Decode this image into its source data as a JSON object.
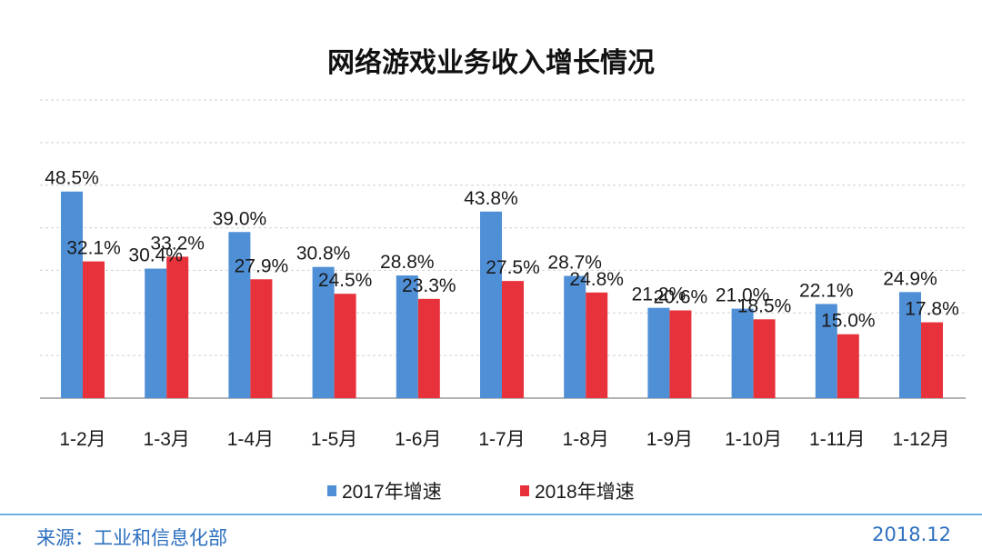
{
  "chart_data": {
    "type": "bar",
    "title": "网络游戏业务收入增长情况",
    "categories": [
      "1-2月",
      "1-3月",
      "1-4月",
      "1-5月",
      "1-6月",
      "1-7月",
      "1-8月",
      "1-9月",
      "1-10月",
      "1-11月",
      "1-12月"
    ],
    "series": [
      {
        "name": "2017年增速",
        "color": "#4f8fd6",
        "values": [
          48.5,
          30.4,
          39.0,
          30.8,
          28.8,
          43.8,
          28.7,
          21.2,
          21.0,
          22.1,
          24.9
        ]
      },
      {
        "name": "2018年增速",
        "color": "#e8323b",
        "values": [
          32.1,
          33.2,
          27.9,
          24.5,
          23.3,
          27.5,
          24.8,
          20.6,
          18.5,
          15.0,
          17.8
        ]
      }
    ],
    "value_labels": [
      [
        "48.5%",
        "30.4%",
        "39.0%",
        "30.8%",
        "28.8%",
        "43.8%",
        "28.7%",
        "21.2%",
        "21.0%",
        "22.1%",
        "24.9%"
      ],
      [
        "32.1%",
        "33.2%",
        "27.9%",
        "24.5%",
        "23.3%",
        "27.5%",
        "24.8%",
        "20.6%",
        "18.5%",
        "15.0%",
        "17.8%"
      ]
    ],
    "ylim": [
      0,
      70
    ],
    "grid": true,
    "legend_position": "bottom"
  },
  "footer": {
    "source": "来源：工业和信息化部",
    "date": "2018.12"
  }
}
